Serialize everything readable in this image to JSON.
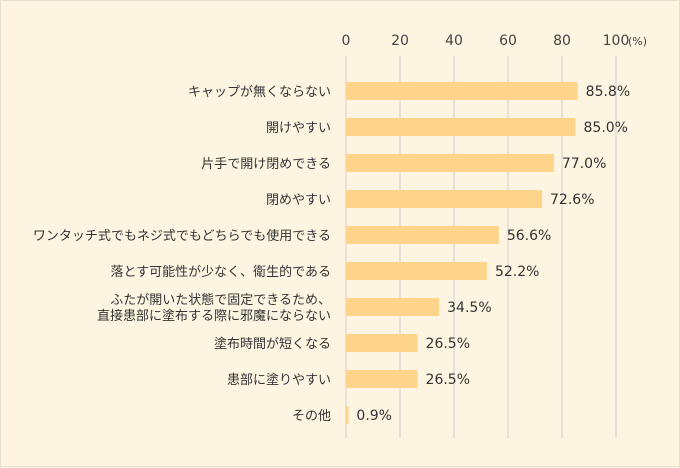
{
  "chart_data": {
    "type": "bar",
    "orientation": "horizontal",
    "unit": "(%)",
    "xlim": [
      0,
      100
    ],
    "ticks": [
      0,
      20,
      40,
      60,
      80,
      100
    ],
    "grid": true,
    "bar_color": "#fdd48a",
    "grid_color": "#cfcfcf",
    "categories": [
      [
        "キャップが無くならない"
      ],
      [
        "開けやすい"
      ],
      [
        "片手で開け閉めできる"
      ],
      [
        "閉めやすい"
      ],
      [
        "ワンタッチ式でもネジ式でもどちらでも使用できる"
      ],
      [
        "落とす可能性が少なく、衛生的である"
      ],
      [
        "ふたが開いた状態で固定できるため、",
        "直接患部に塗布する際に邪魔にならない"
      ],
      [
        "塗布時間が短くなる"
      ],
      [
        "患部に塗りやすい"
      ],
      [
        "その他"
      ]
    ],
    "values": [
      85.8,
      85.0,
      77.0,
      72.6,
      56.6,
      52.2,
      34.5,
      26.5,
      26.5,
      0.9
    ],
    "value_labels": [
      "85.8%",
      "85.0%",
      "77.0%",
      "72.6%",
      "56.6%",
      "52.2%",
      "34.5%",
      "26.5%",
      "26.5%",
      "0.9%"
    ]
  }
}
